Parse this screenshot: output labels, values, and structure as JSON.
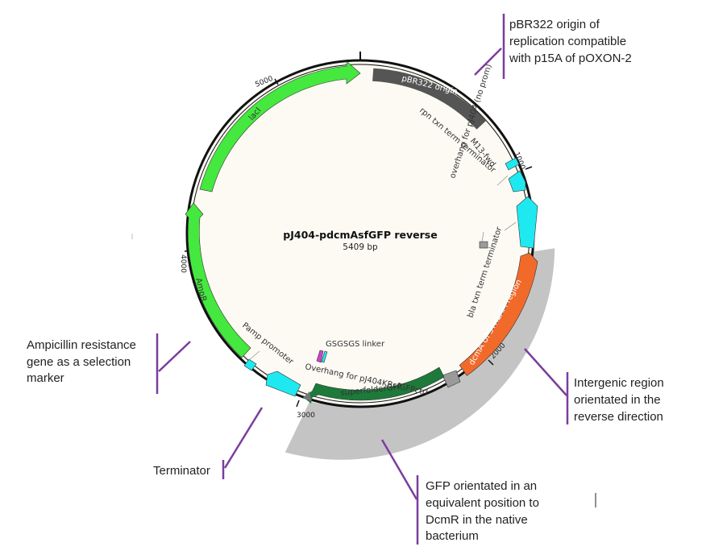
{
  "plasmid": {
    "name": "pJ404-pdcmAsfGFP reverse",
    "size": "5409 bp"
  },
  "ticks": {
    "t1000": "1000",
    "t2000": "2000",
    "t3000": "3000",
    "t4000": "4000",
    "t5000": "5000"
  },
  "features": {
    "pbr322_origin": "pBR322 origin",
    "rpn_terminator": "rpn txn term terminator",
    "m13_fwd": "M13-fwd",
    "overhang_pj404": "overhang for pJ404 (no prom)",
    "bla_terminator": "bla txn term terminator",
    "dcma_upstream": "dcmA UPSTREAM region",
    "gsgsgs_linker": "GSGSGS linker",
    "overhang_kbsfgfp": "Overhang for pJ404KBsfGFPctrl",
    "superfolder_gfp": "superfolderGFP",
    "pamp_promoter": "Pamp promoter",
    "ampr": "AmpR",
    "laci": "lacI"
  },
  "annotations": {
    "origin": [
      "pBR322 origin of",
      "replication compatible",
      "with p15A of pOXON-2"
    ],
    "ampicillin": [
      "Ampicillin resistance",
      "gene as a selection",
      "marker"
    ],
    "terminator": [
      "Terminator"
    ],
    "intergenic": [
      "Intergenic region",
      "orientated in the",
      "reverse direction"
    ],
    "gfp": [
      "GFP orientated in an",
      "equivalent position to",
      "DcmR in the native",
      "bacterium"
    ]
  },
  "colors": {
    "backbone_fill": "#fcfaf3",
    "ring": "#111111",
    "origin": "#555555",
    "terminator": "#1ee9f0",
    "promoter_region": "#f26a2a",
    "gfp": "#1d7a3a",
    "marker_gene": "#45e83e",
    "highlight_arc": "#c4c4c4",
    "annotation_line": "#7a3e9d",
    "linker": "#d040d0"
  }
}
